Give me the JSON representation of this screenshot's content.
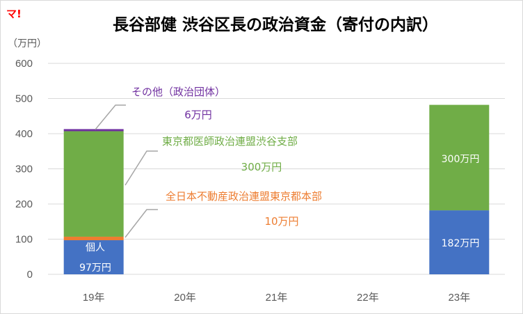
{
  "logo_text": "マ!",
  "chart_data": {
    "type": "bar",
    "stacked": true,
    "title": "長谷部健 渋谷区長の政治資金（寄付の内訳）",
    "ylabel": "（万円）",
    "ylim": [
      0,
      600
    ],
    "yticks": [
      "0",
      "100",
      "200",
      "300",
      "400",
      "500",
      "600"
    ],
    "grid": true,
    "categories": [
      "19年",
      "20年",
      "21年",
      "22年",
      "23年"
    ],
    "colors": {
      "individual": "#4472c4",
      "zennihon": "#ed7d31",
      "ishikai": "#70ad47",
      "other": "#7030a0"
    },
    "series": [
      {
        "key": "individual",
        "values": [
          97,
          0,
          0,
          0,
          182
        ]
      },
      {
        "key": "zennihon",
        "name": "全日本不動産政治連盟東京都本部",
        "values": [
          10,
          0,
          0,
          0,
          0
        ]
      },
      {
        "key": "ishikai",
        "name": "東京都医師政治連盟渋谷支部",
        "values": [
          300,
          0,
          0,
          0,
          300
        ]
      },
      {
        "key": "other",
        "name": "その他（政治団体）",
        "values": [
          6,
          0,
          0,
          0,
          0
        ]
      }
    ],
    "annotations": {
      "other_name": "その他（政治団体）",
      "other_value": "6万円",
      "ishikai_name": "東京都医師政治連盟渋谷支部",
      "ishikai_value": "300万円",
      "zennihon_name": "全日本不動産政治連盟東京都本部",
      "zennihon_value": "10万円"
    },
    "bar_labels": {
      "y19_individual_name": "個人",
      "y19_individual_value": "97万円",
      "y23_ishikai_value": "300万円",
      "y23_individual_value": "182万円"
    }
  }
}
